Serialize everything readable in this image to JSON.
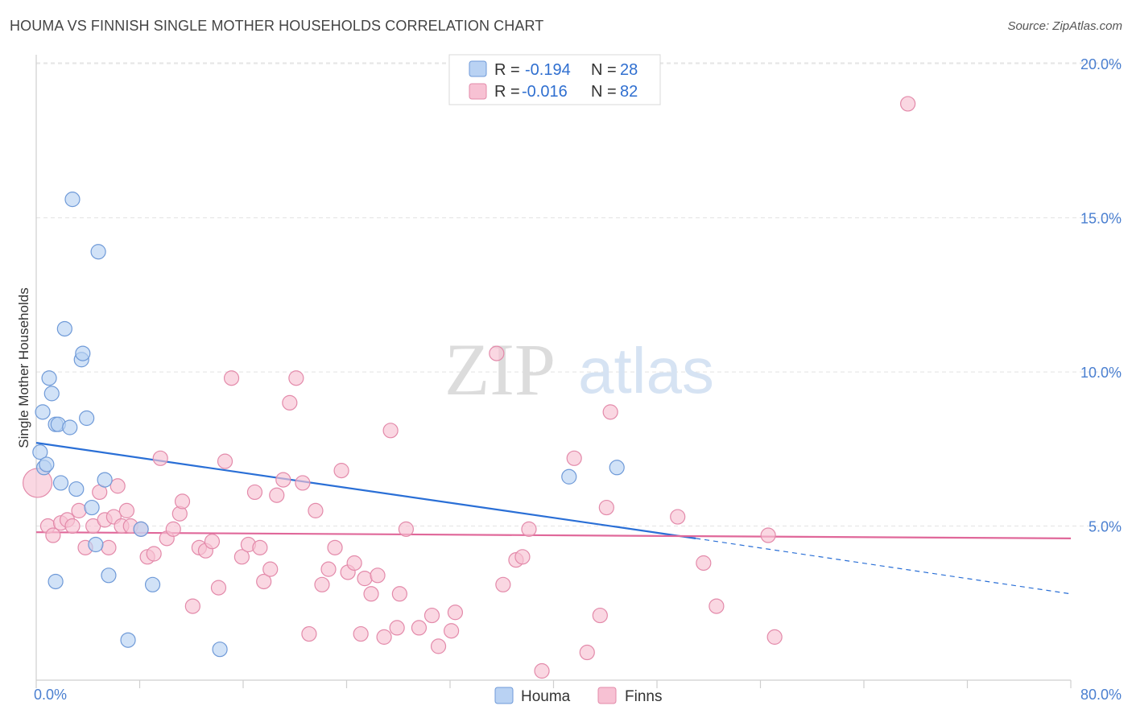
{
  "header": {
    "title": "HOUMA VS FINNISH SINGLE MOTHER HOUSEHOLDS CORRELATION CHART",
    "source": "Source: ZipAtlas.com"
  },
  "watermark": {
    "zip": "ZIP",
    "atlas": "atlas"
  },
  "legend": {
    "houma": {
      "r_label": "R =",
      "r_value": "-0.194",
      "n_label": "N =",
      "n_value": "28"
    },
    "finns": {
      "r_label": "R =",
      "r_value": "-0.016",
      "n_label": "N =",
      "n_value": "82"
    }
  },
  "bottom_legend": {
    "houma": "Houma",
    "finns": "Finns"
  },
  "chart_data": {
    "type": "scatter",
    "ylabel": "Single Mother Households",
    "xlim": [
      0,
      80
    ],
    "ylim": [
      0,
      20.5
    ],
    "x_tick_labels": [
      "0.0%",
      "80.0%"
    ],
    "y_ticks": [
      5,
      10,
      15,
      20
    ],
    "y_tick_labels": [
      "5.0%",
      "10.0%",
      "15.0%",
      "20.0%"
    ],
    "grid": true,
    "colors": {
      "houma": "#4a7fd0",
      "houma_fill": "#b9d2f3",
      "finns": "#e37aa0",
      "finns_fill": "#f7c1d3"
    },
    "series": [
      {
        "name": "Houma",
        "points": [
          [
            0.3,
            7.4
          ],
          [
            0.5,
            8.7
          ],
          [
            0.6,
            6.9
          ],
          [
            0.8,
            7.0
          ],
          [
            1.0,
            9.8
          ],
          [
            1.2,
            9.3
          ],
          [
            1.5,
            8.3
          ],
          [
            1.7,
            8.3
          ],
          [
            1.9,
            6.4
          ],
          [
            2.2,
            11.4
          ],
          [
            2.6,
            8.2
          ],
          [
            2.8,
            15.6
          ],
          [
            3.1,
            6.2
          ],
          [
            3.5,
            10.4
          ],
          [
            3.6,
            10.6
          ],
          [
            3.9,
            8.5
          ],
          [
            4.3,
            5.6
          ],
          [
            4.6,
            4.4
          ],
          [
            4.8,
            13.9
          ],
          [
            5.3,
            6.5
          ],
          [
            5.6,
            3.4
          ],
          [
            7.1,
            1.3
          ],
          [
            8.1,
            4.9
          ],
          [
            9.0,
            3.1
          ],
          [
            14.2,
            1.0
          ],
          [
            1.5,
            3.2
          ],
          [
            41.2,
            6.6
          ],
          [
            44.9,
            6.9
          ]
        ],
        "trend": {
          "x0": 0,
          "y0": 7.7,
          "x1": 51,
          "y1": 4.6,
          "dash_to_x": 80,
          "dash_to_y": 2.8
        }
      },
      {
        "name": "Finns",
        "points": [
          [
            0.1,
            6.4
          ],
          [
            0.9,
            5.0
          ],
          [
            1.3,
            4.7
          ],
          [
            1.9,
            5.1
          ],
          [
            2.4,
            5.2
          ],
          [
            2.8,
            5.0
          ],
          [
            3.3,
            5.5
          ],
          [
            3.8,
            4.3
          ],
          [
            4.4,
            5.0
          ],
          [
            4.9,
            6.1
          ],
          [
            5.3,
            5.2
          ],
          [
            5.6,
            4.3
          ],
          [
            6.0,
            5.3
          ],
          [
            6.3,
            6.3
          ],
          [
            6.6,
            5.0
          ],
          [
            7.0,
            5.5
          ],
          [
            7.3,
            5.0
          ],
          [
            8.1,
            4.9
          ],
          [
            8.6,
            4.0
          ],
          [
            9.1,
            4.1
          ],
          [
            9.6,
            7.2
          ],
          [
            10.1,
            4.6
          ],
          [
            10.6,
            4.9
          ],
          [
            11.1,
            5.4
          ],
          [
            11.3,
            5.8
          ],
          [
            12.1,
            2.4
          ],
          [
            12.6,
            4.3
          ],
          [
            13.1,
            4.2
          ],
          [
            13.6,
            4.5
          ],
          [
            14.1,
            3.0
          ],
          [
            14.6,
            7.1
          ],
          [
            15.1,
            9.8
          ],
          [
            15.9,
            4.0
          ],
          [
            16.4,
            4.4
          ],
          [
            16.9,
            6.1
          ],
          [
            17.3,
            4.3
          ],
          [
            17.6,
            3.2
          ],
          [
            18.1,
            3.6
          ],
          [
            18.6,
            6.0
          ],
          [
            19.1,
            6.5
          ],
          [
            19.6,
            9.0
          ],
          [
            20.1,
            9.8
          ],
          [
            20.6,
            6.4
          ],
          [
            21.1,
            1.5
          ],
          [
            21.6,
            5.5
          ],
          [
            22.1,
            3.1
          ],
          [
            22.6,
            3.6
          ],
          [
            23.1,
            4.3
          ],
          [
            23.6,
            6.8
          ],
          [
            24.1,
            3.5
          ],
          [
            24.6,
            3.8
          ],
          [
            25.1,
            1.5
          ],
          [
            25.4,
            3.3
          ],
          [
            25.9,
            2.8
          ],
          [
            26.4,
            3.4
          ],
          [
            26.9,
            1.4
          ],
          [
            27.4,
            8.1
          ],
          [
            27.9,
            1.7
          ],
          [
            28.1,
            2.8
          ],
          [
            28.6,
            4.9
          ],
          [
            29.6,
            1.7
          ],
          [
            30.6,
            2.1
          ],
          [
            31.1,
            1.1
          ],
          [
            32.1,
            1.6
          ],
          [
            32.4,
            2.2
          ],
          [
            35.6,
            10.6
          ],
          [
            36.1,
            3.1
          ],
          [
            37.1,
            3.9
          ],
          [
            37.6,
            4.0
          ],
          [
            38.1,
            4.9
          ],
          [
            39.1,
            0.3
          ],
          [
            41.6,
            7.2
          ],
          [
            42.6,
            0.9
          ],
          [
            43.6,
            2.1
          ],
          [
            44.1,
            5.6
          ],
          [
            44.4,
            8.7
          ],
          [
            49.6,
            5.3
          ],
          [
            51.6,
            3.8
          ],
          [
            52.6,
            2.4
          ],
          [
            56.6,
            4.7
          ],
          [
            57.1,
            1.4
          ],
          [
            67.4,
            18.7
          ]
        ],
        "trend": {
          "x0": 0,
          "y0": 4.8,
          "x1": 80,
          "y1": 4.6
        }
      }
    ]
  }
}
